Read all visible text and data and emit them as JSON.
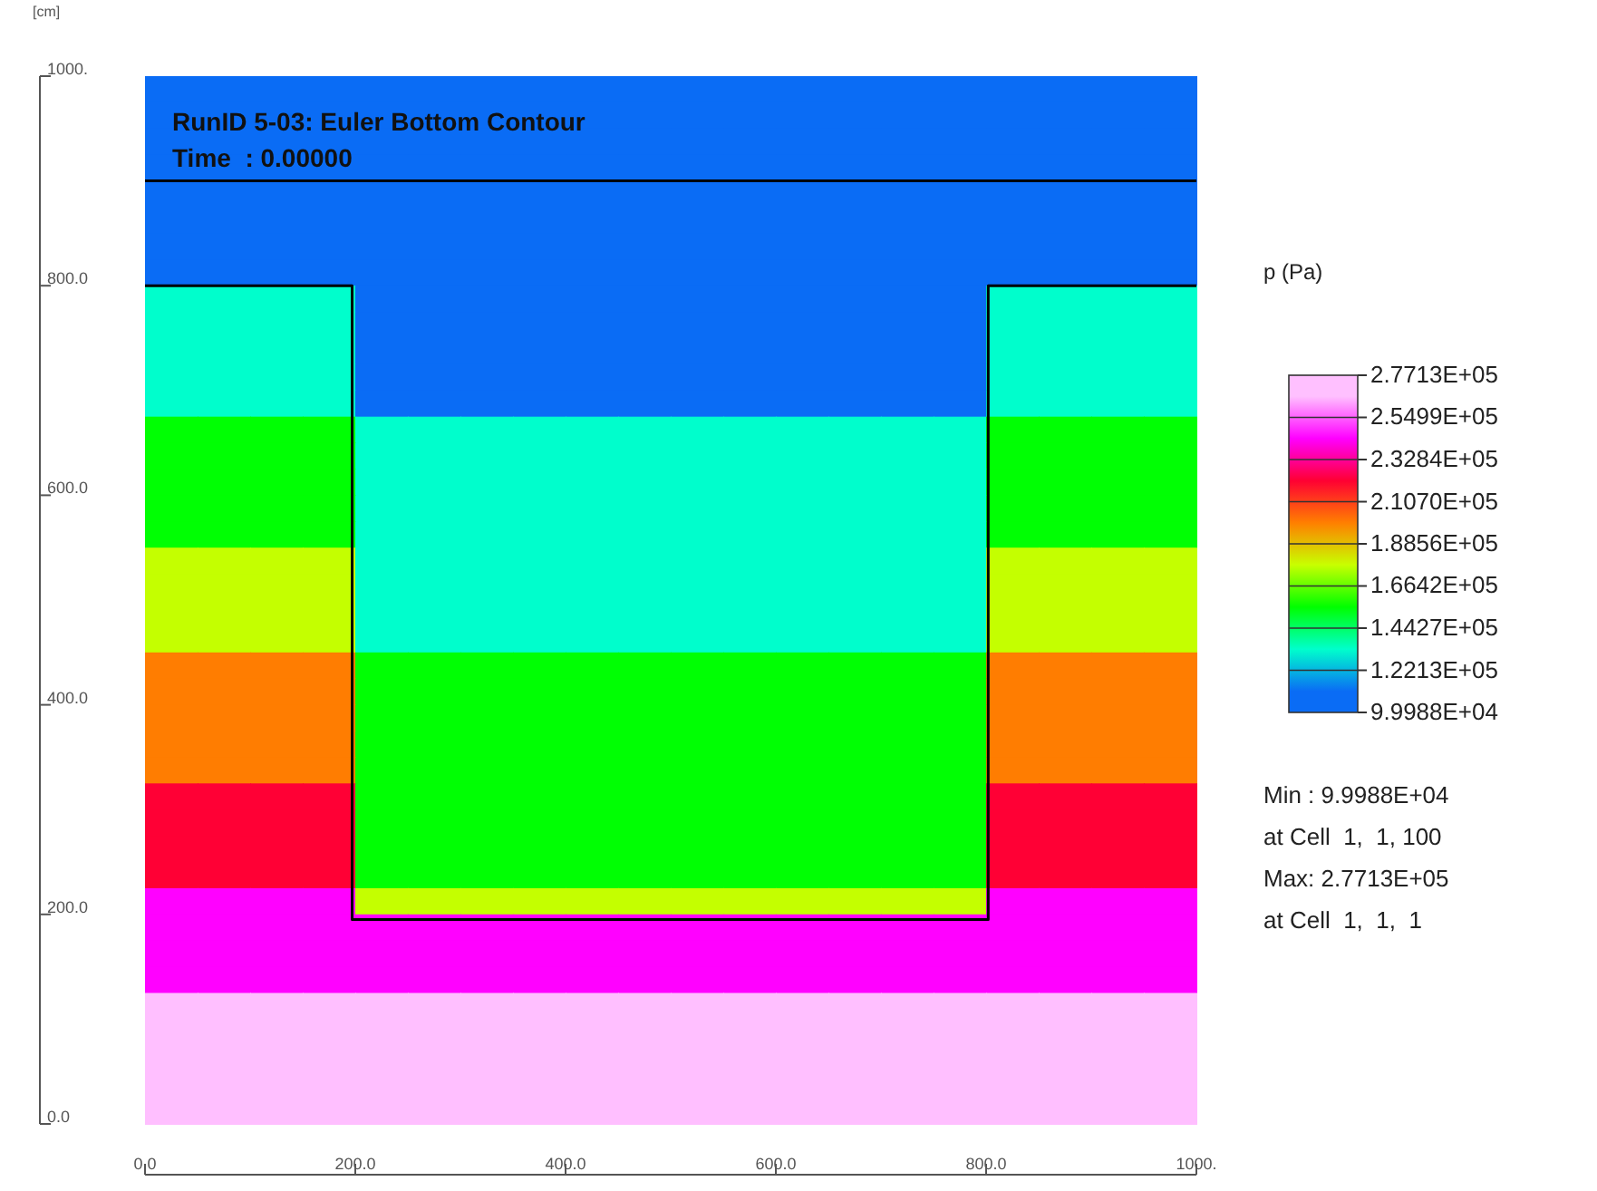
{
  "chart_data": {
    "type": "heatmap",
    "title": "RunID 5-03: Euler Bottom Contour",
    "subtitle": "Time  : 0.00000",
    "ylabel": "[cm]",
    "clabel": "p (Pa)",
    "annotations": [
      "Min : 9.9988E+04",
      "at Cell  1,  1, 100",
      "Max: 2.7713E+05",
      "at Cell  1,  1,  1"
    ],
    "x": [
      25,
      75,
      125,
      175,
      225,
      275,
      325,
      375,
      425,
      475,
      525,
      575,
      625,
      675,
      725,
      775,
      825,
      875,
      925,
      975
    ],
    "y": [
      987.5,
      962.5,
      937.5,
      912.5,
      887.5,
      862.5,
      837.5,
      812.5,
      787.5,
      762.5,
      737.5,
      712.5,
      687.5,
      662.5,
      637.5,
      612.5,
      587.5,
      562.5,
      537.5,
      512.5,
      487.5,
      462.5,
      437.5,
      412.5,
      387.5,
      362.5,
      337.5,
      312.5,
      287.5,
      262.5,
      237.5,
      212.5,
      187.5,
      162.5,
      137.5,
      112.5,
      87.5,
      62.5,
      37.5,
      12.5
    ],
    "cells": [
      [
        111000,
        111000,
        111000,
        111000,
        111000,
        111000,
        111000,
        111000,
        111000,
        111000,
        111000,
        111000,
        111000,
        111000,
        111000,
        111000,
        111000,
        111000,
        111000,
        111000
      ],
      [
        111000,
        111000,
        111000,
        111000,
        111000,
        111000,
        111000,
        111000,
        111000,
        111000,
        111000,
        111000,
        111000,
        111000,
        111000,
        111000,
        111000,
        111000,
        111000,
        111000
      ],
      [
        111000,
        111000,
        111000,
        111000,
        111000,
        111000,
        111000,
        111000,
        111000,
        111000,
        111000,
        111000,
        111000,
        111000,
        111000,
        111000,
        111000,
        111000,
        111000,
        111000
      ],
      [
        111000,
        111000,
        111000,
        111000,
        111000,
        111000,
        111000,
        111000,
        111000,
        111000,
        111000,
        111000,
        111000,
        111000,
        111000,
        111000,
        111000,
        111000,
        111000,
        111000
      ],
      [
        111000,
        111000,
        111000,
        111000,
        111000,
        111000,
        111000,
        111000,
        111000,
        111000,
        111000,
        111000,
        111000,
        111000,
        111000,
        111000,
        111000,
        111000,
        111000,
        111000
      ],
      [
        111000,
        111000,
        111000,
        111000,
        111000,
        111000,
        111000,
        111000,
        111000,
        111000,
        111000,
        111000,
        111000,
        111000,
        111000,
        111000,
        111000,
        111000,
        111000,
        111000
      ],
      [
        111000,
        111000,
        111000,
        111000,
        111000,
        111000,
        111000,
        111000,
        111000,
        111000,
        111000,
        111000,
        111000,
        111000,
        111000,
        111000,
        111000,
        111000,
        111000,
        111000
      ],
      [
        111000,
        111000,
        111000,
        111000,
        111000,
        111000,
        111000,
        111000,
        111000,
        111000,
        111000,
        111000,
        111000,
        111000,
        111000,
        111000,
        111000,
        111000,
        111000,
        111000
      ],
      [
        133000,
        133000,
        133000,
        133000,
        111000,
        111000,
        111000,
        111000,
        111000,
        111000,
        111000,
        111000,
        111000,
        111000,
        111000,
        111000,
        133000,
        133000,
        133000,
        133000
      ],
      [
        133000,
        133000,
        133000,
        133000,
        111000,
        111000,
        111000,
        111000,
        111000,
        111000,
        111000,
        111000,
        111000,
        111000,
        111000,
        111000,
        133000,
        133000,
        133000,
        133000
      ],
      [
        133000,
        133000,
        133000,
        133000,
        111000,
        111000,
        111000,
        111000,
        111000,
        111000,
        111000,
        111000,
        111000,
        111000,
        111000,
        111000,
        133000,
        133000,
        133000,
        133000
      ],
      [
        133000,
        133000,
        133000,
        133000,
        111000,
        111000,
        111000,
        111000,
        111000,
        111000,
        111000,
        111000,
        111000,
        111000,
        111000,
        111000,
        133000,
        133000,
        133000,
        133000
      ],
      [
        133000,
        133000,
        133000,
        133000,
        111000,
        111000,
        111000,
        111000,
        111000,
        111000,
        111000,
        111000,
        111000,
        111000,
        111000,
        111000,
        133000,
        133000,
        133000,
        133000
      ],
      [
        155000,
        155000,
        155000,
        155000,
        133000,
        133000,
        133000,
        133000,
        133000,
        133000,
        133000,
        133000,
        133000,
        133000,
        133000,
        133000,
        155000,
        155000,
        155000,
        155000
      ],
      [
        155000,
        155000,
        155000,
        155000,
        133000,
        133000,
        133000,
        133000,
        133000,
        133000,
        133000,
        133000,
        133000,
        133000,
        133000,
        133000,
        155000,
        155000,
        155000,
        155000
      ],
      [
        155000,
        155000,
        155000,
        155000,
        133000,
        133000,
        133000,
        133000,
        133000,
        133000,
        133000,
        133000,
        133000,
        133000,
        133000,
        133000,
        155000,
        155000,
        155000,
        155000
      ],
      [
        155000,
        155000,
        155000,
        155000,
        133000,
        133000,
        133000,
        133000,
        133000,
        133000,
        133000,
        133000,
        133000,
        133000,
        133000,
        133000,
        155000,
        155000,
        155000,
        155000
      ],
      [
        155000,
        155000,
        155000,
        155000,
        133000,
        133000,
        133000,
        133000,
        133000,
        133000,
        133000,
        133000,
        133000,
        133000,
        133000,
        133000,
        155000,
        155000,
        155000,
        155000
      ],
      [
        177000,
        177000,
        177000,
        177000,
        133000,
        133000,
        133000,
        133000,
        133000,
        133000,
        133000,
        133000,
        133000,
        133000,
        133000,
        133000,
        177000,
        177000,
        177000,
        177000
      ],
      [
        177000,
        177000,
        177000,
        177000,
        133000,
        133000,
        133000,
        133000,
        133000,
        133000,
        133000,
        133000,
        133000,
        133000,
        133000,
        133000,
        177000,
        177000,
        177000,
        177000
      ],
      [
        177000,
        177000,
        177000,
        177000,
        133000,
        133000,
        133000,
        133000,
        133000,
        133000,
        133000,
        133000,
        133000,
        133000,
        133000,
        133000,
        177000,
        177000,
        177000,
        177000
      ],
      [
        177000,
        177000,
        177000,
        177000,
        133000,
        133000,
        133000,
        133000,
        133000,
        133000,
        133000,
        133000,
        133000,
        133000,
        133000,
        133000,
        177000,
        177000,
        177000,
        177000
      ],
      [
        200000,
        200000,
        200000,
        200000,
        155000,
        155000,
        155000,
        155000,
        155000,
        155000,
        155000,
        155000,
        155000,
        155000,
        155000,
        155000,
        200000,
        200000,
        200000,
        200000
      ],
      [
        200000,
        200000,
        200000,
        200000,
        155000,
        155000,
        155000,
        155000,
        155000,
        155000,
        155000,
        155000,
        155000,
        155000,
        155000,
        155000,
        200000,
        200000,
        200000,
        200000
      ],
      [
        200000,
        200000,
        200000,
        200000,
        155000,
        155000,
        155000,
        155000,
        155000,
        155000,
        155000,
        155000,
        155000,
        155000,
        155000,
        155000,
        200000,
        200000,
        200000,
        200000
      ],
      [
        200000,
        200000,
        200000,
        200000,
        155000,
        155000,
        155000,
        155000,
        155000,
        155000,
        155000,
        155000,
        155000,
        155000,
        155000,
        155000,
        200000,
        200000,
        200000,
        200000
      ],
      [
        200000,
        200000,
        200000,
        200000,
        155000,
        155000,
        155000,
        155000,
        155000,
        155000,
        155000,
        155000,
        155000,
        155000,
        155000,
        155000,
        200000,
        200000,
        200000,
        200000
      ],
      [
        222000,
        222000,
        222000,
        222000,
        155000,
        155000,
        155000,
        155000,
        155000,
        155000,
        155000,
        155000,
        155000,
        155000,
        155000,
        155000,
        222000,
        222000,
        222000,
        222000
      ],
      [
        222000,
        222000,
        222000,
        222000,
        155000,
        155000,
        155000,
        155000,
        155000,
        155000,
        155000,
        155000,
        155000,
        155000,
        155000,
        155000,
        222000,
        222000,
        222000,
        222000
      ],
      [
        222000,
        222000,
        222000,
        222000,
        155000,
        155000,
        155000,
        155000,
        155000,
        155000,
        155000,
        155000,
        155000,
        155000,
        155000,
        155000,
        222000,
        222000,
        222000,
        222000
      ],
      [
        222000,
        222000,
        222000,
        222000,
        155000,
        155000,
        155000,
        155000,
        155000,
        155000,
        155000,
        155000,
        155000,
        155000,
        155000,
        155000,
        222000,
        222000,
        222000,
        222000
      ],
      [
        244000,
        244000,
        244000,
        244000,
        177000,
        177000,
        177000,
        177000,
        177000,
        177000,
        177000,
        177000,
        177000,
        177000,
        177000,
        177000,
        244000,
        244000,
        244000,
        244000
      ],
      [
        244000,
        244000,
        244000,
        244000,
        244000,
        244000,
        244000,
        244000,
        244000,
        244000,
        244000,
        244000,
        244000,
        244000,
        244000,
        244000,
        244000,
        244000,
        244000,
        244000
      ],
      [
        244000,
        244000,
        244000,
        244000,
        244000,
        244000,
        244000,
        244000,
        244000,
        244000,
        244000,
        244000,
        244000,
        244000,
        244000,
        244000,
        244000,
        244000,
        244000,
        244000
      ],
      [
        244000,
        244000,
        244000,
        244000,
        244000,
        244000,
        244000,
        244000,
        244000,
        244000,
        244000,
        244000,
        244000,
        244000,
        244000,
        244000,
        244000,
        244000,
        244000,
        244000
      ],
      [
        266000,
        266000,
        266000,
        266000,
        266000,
        266000,
        266000,
        266000,
        266000,
        266000,
        266000,
        266000,
        266000,
        266000,
        266000,
        266000,
        266000,
        266000,
        266000,
        266000
      ],
      [
        266000,
        266000,
        266000,
        266000,
        266000,
        266000,
        266000,
        266000,
        266000,
        266000,
        266000,
        266000,
        266000,
        266000,
        266000,
        266000,
        266000,
        266000,
        266000,
        266000
      ],
      [
        266000,
        266000,
        266000,
        266000,
        266000,
        266000,
        266000,
        266000,
        266000,
        266000,
        266000,
        266000,
        266000,
        266000,
        266000,
        266000,
        266000,
        266000,
        266000,
        266000
      ],
      [
        266000,
        266000,
        266000,
        266000,
        266000,
        266000,
        266000,
        266000,
        266000,
        266000,
        266000,
        266000,
        266000,
        266000,
        266000,
        266000,
        266000,
        266000,
        266000,
        266000
      ],
      [
        266000,
        266000,
        266000,
        266000,
        266000,
        266000,
        266000,
        266000,
        266000,
        266000,
        266000,
        266000,
        266000,
        266000,
        266000,
        266000,
        266000,
        266000,
        266000,
        266000
      ]
    ],
    "colors": [
      "#0a6cf5",
      "#00ffcc",
      "#00ff00",
      "#c8ff00",
      "#ff7f00",
      "#ff0033",
      "#ff00ff",
      "#ffc0ff"
    ],
    "clim": [
      99988,
      277130
    ],
    "cticks": [
      {
        "value": 99988,
        "label": "9.9988E+04"
      },
      {
        "value": 122130,
        "label": "1.2213E+05"
      },
      {
        "value": 144270,
        "label": "1.4427E+05"
      },
      {
        "value": 166420,
        "label": "1.6642E+05"
      },
      {
        "value": 188560,
        "label": "1.8856E+05"
      },
      {
        "value": 210700,
        "label": "2.1070E+05"
      },
      {
        "value": 232840,
        "label": "2.3284E+05"
      },
      {
        "value": 254990,
        "label": "2.5499E+05"
      },
      {
        "value": 277130,
        "label": "2.7713E+05"
      }
    ],
    "series": [
      {
        "type": "line",
        "color": "#000000",
        "x": [
          0,
          197,
          197,
          802,
          802,
          1000
        ],
        "values": [
          800,
          800,
          195,
          195,
          800,
          800
        ]
      }
    ],
    "ref_lines": [
      {
        "axis": "y",
        "value": 900,
        "color": "#000000"
      }
    ],
    "xlim": [
      0,
      1000
    ],
    "ylim": [
      0,
      1000
    ],
    "xticks": [
      {
        "value": 0,
        "label": "0.0"
      },
      {
        "value": 200,
        "label": "200.0"
      },
      {
        "value": 400,
        "label": "400.0"
      },
      {
        "value": 600,
        "label": "600.0"
      },
      {
        "value": 800,
        "label": "800.0"
      },
      {
        "value": 1000,
        "label": "1000."
      }
    ],
    "yticks": [
      {
        "value": 0,
        "label": "0.0"
      },
      {
        "value": 200,
        "label": "200.0"
      },
      {
        "value": 400,
        "label": "400.0"
      },
      {
        "value": 600,
        "label": "600.0"
      },
      {
        "value": 800,
        "label": "800.0"
      },
      {
        "value": 1000,
        "label": "1000."
      }
    ],
    "grid": false
  }
}
